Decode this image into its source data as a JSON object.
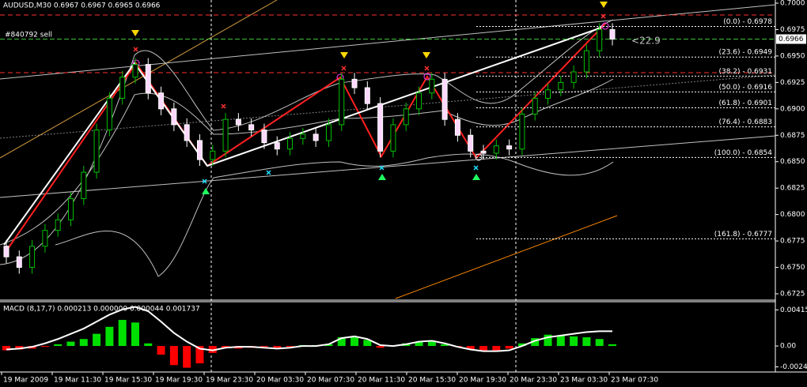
{
  "chart_data": {
    "type": "candlestick",
    "title": "AUDUSD,M30  0.6967 0.6967 0.6965 0.6966",
    "annotations": [
      "#840792 sell",
      "<22.9"
    ],
    "categories": [
      "19 Mar 2009",
      "19 Mar 11:30",
      "19 Mar 15:30",
      "19 Mar 19:30",
      "19 Mar 23:30",
      "20 Mar 03:30",
      "20 Mar 07:30",
      "20 Mar 11:30",
      "20 Mar 15:30",
      "20 Mar 19:30",
      "20 Mar 23:30",
      "23 Mar 03:30",
      "23 Mar 07:30"
    ],
    "open": [
      0.677,
      0.676,
      0.675,
      0.677,
      0.6785,
      0.6795,
      0.6815,
      0.684,
      0.688,
      0.691,
      0.693,
      0.6942,
      0.6915,
      0.69,
      0.6885,
      0.687,
      0.6852,
      0.686,
      0.689,
      0.6885,
      0.688,
      0.6868,
      0.6862,
      0.6872,
      0.6876,
      0.687,
      0.6885,
      0.6928,
      0.692,
      0.6905,
      0.686,
      0.6885,
      0.69,
      0.6915,
      0.6928,
      0.689,
      0.6875,
      0.686,
      0.6858,
      0.6865,
      0.6862,
      0.6895,
      0.691,
      0.6918,
      0.6925,
      0.6935,
      0.6955,
      0.6975
    ],
    "high": [
      0.6776,
      0.6766,
      0.6776,
      0.6791,
      0.6801,
      0.6821,
      0.6846,
      0.6886,
      0.6916,
      0.6936,
      0.6948,
      0.6948,
      0.6921,
      0.6906,
      0.6891,
      0.6876,
      0.6866,
      0.6896,
      0.6896,
      0.6891,
      0.6886,
      0.6874,
      0.6878,
      0.6882,
      0.6882,
      0.6891,
      0.6934,
      0.6934,
      0.6926,
      0.6911,
      0.6891,
      0.6906,
      0.6921,
      0.6934,
      0.6934,
      0.6896,
      0.6881,
      0.6866,
      0.6871,
      0.6871,
      0.6901,
      0.6916,
      0.6924,
      0.6931,
      0.6941,
      0.6961,
      0.6981,
      0.6981
    ],
    "low": [
      0.6754,
      0.6744,
      0.6744,
      0.6764,
      0.6779,
      0.6789,
      0.6809,
      0.6834,
      0.6874,
      0.6904,
      0.6924,
      0.6909,
      0.6894,
      0.6879,
      0.6864,
      0.6846,
      0.6846,
      0.6854,
      0.6879,
      0.6874,
      0.6862,
      0.6856,
      0.6856,
      0.6866,
      0.6864,
      0.6864,
      0.6879,
      0.6914,
      0.6899,
      0.6854,
      0.6854,
      0.6879,
      0.6894,
      0.6909,
      0.6884,
      0.6869,
      0.6854,
      0.6852,
      0.6852,
      0.6856,
      0.6856,
      0.6889,
      0.6904,
      0.6912,
      0.6919,
      0.6929,
      0.6949,
      0.696
    ],
    "close": [
      0.676,
      0.675,
      0.677,
      0.6785,
      0.6795,
      0.6815,
      0.684,
      0.688,
      0.691,
      0.693,
      0.6942,
      0.6915,
      0.69,
      0.6885,
      0.687,
      0.6852,
      0.686,
      0.689,
      0.6885,
      0.688,
      0.6868,
      0.6862,
      0.6872,
      0.6876,
      0.687,
      0.6885,
      0.6928,
      0.692,
      0.6905,
      0.686,
      0.6885,
      0.69,
      0.6915,
      0.6928,
      0.689,
      0.6875,
      0.686,
      0.6858,
      0.6865,
      0.6862,
      0.6895,
      0.691,
      0.6918,
      0.6925,
      0.6935,
      0.6955,
      0.6975,
      0.6966
    ],
    "up_color": "#00c000",
    "down_color": "#ffffff",
    "ylim": [
      0.6725,
      0.7
    ],
    "yticks": [
      {
        "value": 0.7,
        "label": "0.7000"
      },
      {
        "value": 0.6975,
        "label": "0.6975"
      },
      {
        "value": 0.695,
        "label": "0.6950"
      },
      {
        "value": 0.6925,
        "label": "0.6925"
      },
      {
        "value": 0.69,
        "label": "0.6900"
      },
      {
        "value": 0.6875,
        "label": "0.6875"
      },
      {
        "value": 0.685,
        "label": "0.6850"
      },
      {
        "value": 0.6825,
        "label": "0.6825"
      },
      {
        "value": 0.68,
        "label": "0.6800"
      },
      {
        "value": 0.6775,
        "label": "0.6775"
      },
      {
        "value": 0.675,
        "label": "0.6750"
      },
      {
        "value": 0.6725,
        "label": "0.6725"
      }
    ],
    "price": 0.6966,
    "fib_levels": [
      {
        "value": 0.6978,
        "label": "(0.0) - 0.6978"
      },
      {
        "value": 0.6949,
        "label": "(23.6) - 0.6949"
      },
      {
        "value": 0.6931,
        "label": "(38.2) - 0.6931"
      },
      {
        "value": 0.6916,
        "label": "(50.0) - 0.6916"
      },
      {
        "value": 0.6901,
        "label": "(61.8) - 0.6901"
      },
      {
        "value": 0.6883,
        "label": "(76.4) - 0.6883"
      },
      {
        "value": 0.6854,
        "label": "(100.0) - 0.6854"
      },
      {
        "value": 0.6777,
        "label": "(161.8) - 0.6777"
      }
    ],
    "macd": {
      "title": "MACD (8,17,7) 0.000213 0.000000 0.000044 0.001737",
      "histogram": [
        -0.0005,
        -0.0004,
        -0.0003,
        -0.0001,
        0.0002,
        0.0005,
        0.0008,
        0.0014,
        0.0022,
        0.003,
        0.0027,
        0.0003,
        -0.001,
        -0.0022,
        -0.0025,
        -0.002,
        -0.0008,
        -0.0002,
        -0.0003,
        -0.0002,
        -0.0001,
        -0.0002,
        -0.0001,
        0.0001,
        0.0001,
        0.0002,
        0.001,
        0.0011,
        0.0007,
        -0.0002,
        0.0,
        0.0003,
        0.0005,
        0.0006,
        0.0002,
        -0.0001,
        -0.0004,
        -0.0006,
        -0.0005,
        -0.0003,
        0.0003,
        0.0009,
        0.0013,
        0.0012,
        0.0011,
        0.001,
        0.0008,
        0.0002
      ],
      "line": [
        -0.0004,
        -0.0003,
        -0.0001,
        0.0003,
        0.0008,
        0.0014,
        0.002,
        0.0028,
        0.0036,
        0.0042,
        0.0045,
        0.004,
        0.0028,
        0.0015,
        0.0005,
        -0.0003,
        -0.0005,
        -0.0002,
        -0.0001,
        -0.0001,
        -0.0002,
        -0.0003,
        -0.0002,
        0.0,
        0.0,
        0.0002,
        0.0009,
        0.0011,
        0.0008,
        0.0001,
        0.0,
        0.0002,
        0.0005,
        0.0006,
        0.0003,
        -0.0001,
        -0.0004,
        -0.0006,
        -0.0006,
        -0.0005,
        0.0,
        0.0006,
        0.001,
        0.0012,
        0.0014,
        0.0016,
        0.0017,
        0.0017
      ],
      "pos_color": "#00e000",
      "neg_color": "#ff0000",
      "ylim": [
        -0.0029,
        0.005
      ],
      "yticks": [
        {
          "value": 0.00415,
          "label": "0.00415"
        },
        {
          "value": 0,
          "label": "0.00"
        },
        {
          "value": -0.0024,
          "label": "-0.00240"
        }
      ]
    }
  }
}
